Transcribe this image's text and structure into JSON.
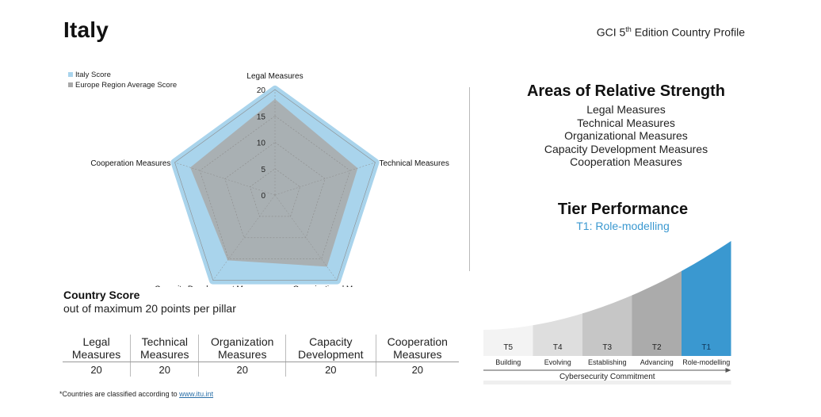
{
  "header": {
    "country": "Italy",
    "profile_prefix": "GCI 5",
    "profile_sup": "th",
    "profile_suffix": " Edition Country Profile"
  },
  "chart_data": {
    "type": "radar",
    "axes": [
      "Legal Measures",
      "Technical Measures",
      "Organizational Measures",
      "Capacity Development Measures",
      "Cooperation Measures"
    ],
    "series": [
      {
        "name": "Italy Score",
        "values": [
          20,
          20,
          20,
          20,
          20
        ],
        "color": "#a9d4ec"
      },
      {
        "name": "Europe Region Average Score",
        "values": [
          18.2,
          16.5,
          16.8,
          15.3,
          16.9
        ],
        "color": "#a9a9a9"
      }
    ],
    "rlim": [
      0,
      20
    ],
    "tick_labels": [
      "0",
      "5",
      "10",
      "15",
      "20"
    ],
    "legend_position": "top-left"
  },
  "strengths": {
    "title": "Areas of Relative Strength",
    "items": [
      "Legal Measures",
      "Technical Measures",
      "Organizational Measures",
      "Capacity Development Measures",
      "Cooperation Measures"
    ]
  },
  "tier": {
    "title": "Tier Performance",
    "current": "T1: Role-modelling",
    "tiers": [
      {
        "code": "T5",
        "name": "Building",
        "color": "#f3f3f3"
      },
      {
        "code": "T4",
        "name": "Evolving",
        "color": "#dedede"
      },
      {
        "code": "T3",
        "name": "Establishing",
        "color": "#c6c6c6"
      },
      {
        "code": "T2",
        "name": "Advancing",
        "color": "#ababab"
      },
      {
        "code": "T1",
        "name": "Role-modelling",
        "color": "#3a98d0"
      }
    ],
    "axis_label": "Cybersecurity Commitment"
  },
  "score": {
    "title": "Country Score",
    "subtitle": "out of maximum 20 points per pillar",
    "columns": [
      {
        "line1": "Legal",
        "line2": "Measures",
        "value": "20"
      },
      {
        "line1": "Technical",
        "line2": "Measures",
        "value": "20"
      },
      {
        "line1": "Organization",
        "line2": "Measures",
        "value": "20"
      },
      {
        "line1": "Capacity",
        "line2": "Development",
        "value": "20"
      },
      {
        "line1": "Cooperation",
        "line2": "Measures",
        "value": "20"
      }
    ]
  },
  "footnote": {
    "text": "*Countries are classified according to ",
    "link": "www.itu.int"
  }
}
